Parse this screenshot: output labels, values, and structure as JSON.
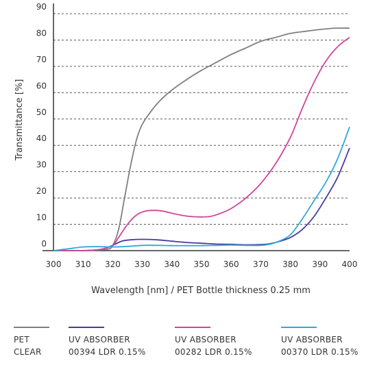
{
  "chart_data": {
    "type": "line",
    "xlabel": "Wavelength [nm] / PET Bottle thickness 0.25 mm",
    "ylabel": "Transmittance [%]",
    "xlim": [
      300,
      400
    ],
    "ylim": [
      0,
      90
    ],
    "x_ticks": [
      300,
      310,
      320,
      330,
      340,
      350,
      360,
      370,
      380,
      390,
      400
    ],
    "y_ticks": [
      0,
      10,
      20,
      30,
      40,
      50,
      60,
      70,
      80,
      90
    ],
    "grid": "horizontal-dashed",
    "legend_position": "bottom",
    "series": [
      {
        "legend_line1": "PET",
        "legend_line2": "CLEAR",
        "color": "#7f7f7f",
        "points": [
          [
            300,
            0
          ],
          [
            310,
            0
          ],
          [
            318,
            0.5
          ],
          [
            320,
            2
          ],
          [
            322,
            8
          ],
          [
            324,
            20
          ],
          [
            326,
            32
          ],
          [
            328,
            42
          ],
          [
            330,
            48
          ],
          [
            333,
            53
          ],
          [
            336,
            57
          ],
          [
            340,
            61
          ],
          [
            345,
            65
          ],
          [
            350,
            68.5
          ],
          [
            355,
            71.5
          ],
          [
            360,
            74.5
          ],
          [
            365,
            77
          ],
          [
            370,
            79.5
          ],
          [
            375,
            81
          ],
          [
            380,
            82.5
          ],
          [
            385,
            83.3
          ],
          [
            390,
            84
          ],
          [
            395,
            84.5
          ],
          [
            400,
            84.5
          ]
        ]
      },
      {
        "legend_line1": "UV ABSORBER",
        "legend_line2": "00394 LDR 0.15%",
        "color": "#4a3a9c",
        "points": [
          [
            300,
            0
          ],
          [
            310,
            0
          ],
          [
            316,
            0.5
          ],
          [
            320,
            2
          ],
          [
            323,
            3.6
          ],
          [
            326,
            4.1
          ],
          [
            330,
            4.3
          ],
          [
            335,
            4.1
          ],
          [
            340,
            3.6
          ],
          [
            345,
            3.1
          ],
          [
            350,
            2.8
          ],
          [
            355,
            2.5
          ],
          [
            360,
            2.4
          ],
          [
            365,
            2.2
          ],
          [
            370,
            2.3
          ],
          [
            373,
            2.6
          ],
          [
            376,
            3.4
          ],
          [
            380,
            5
          ],
          [
            384,
            8
          ],
          [
            388,
            13
          ],
          [
            392,
            20
          ],
          [
            396,
            28
          ],
          [
            400,
            39
          ]
        ]
      },
      {
        "legend_line1": "UV ABSORBER",
        "legend_line2": "00282 LDR 0.15%",
        "color": "#d0449c",
        "points": [
          [
            300,
            0
          ],
          [
            310,
            0
          ],
          [
            316,
            0.5
          ],
          [
            320,
            2
          ],
          [
            322,
            5
          ],
          [
            325,
            10
          ],
          [
            328,
            13.5
          ],
          [
            331,
            15
          ],
          [
            334,
            15.3
          ],
          [
            337,
            15
          ],
          [
            340,
            14.2
          ],
          [
            343,
            13.5
          ],
          [
            346,
            13
          ],
          [
            350,
            12.8
          ],
          [
            353,
            13
          ],
          [
            356,
            14
          ],
          [
            360,
            16
          ],
          [
            365,
            20
          ],
          [
            370,
            25.5
          ],
          [
            375,
            33
          ],
          [
            380,
            43
          ],
          [
            384,
            54
          ],
          [
            388,
            64
          ],
          [
            392,
            72
          ],
          [
            396,
            77.5
          ],
          [
            400,
            81
          ]
        ]
      },
      {
        "legend_line1": "UV ABSORBER",
        "legend_line2": "00370 LDR 0.15%",
        "color": "#2fa8d8",
        "points": [
          [
            300,
            0
          ],
          [
            305,
            0.7
          ],
          [
            310,
            1.4
          ],
          [
            315,
            1.5
          ],
          [
            320,
            1.4
          ],
          [
            325,
            1.6
          ],
          [
            330,
            2
          ],
          [
            335,
            2
          ],
          [
            340,
            1.9
          ],
          [
            345,
            1.9
          ],
          [
            350,
            1.9
          ],
          [
            355,
            2
          ],
          [
            360,
            2.1
          ],
          [
            365,
            2
          ],
          [
            370,
            2
          ],
          [
            373,
            2.4
          ],
          [
            376,
            3.5
          ],
          [
            380,
            6
          ],
          [
            384,
            12
          ],
          [
            388,
            19
          ],
          [
            392,
            26
          ],
          [
            396,
            35
          ],
          [
            400,
            47
          ]
        ]
      }
    ]
  }
}
